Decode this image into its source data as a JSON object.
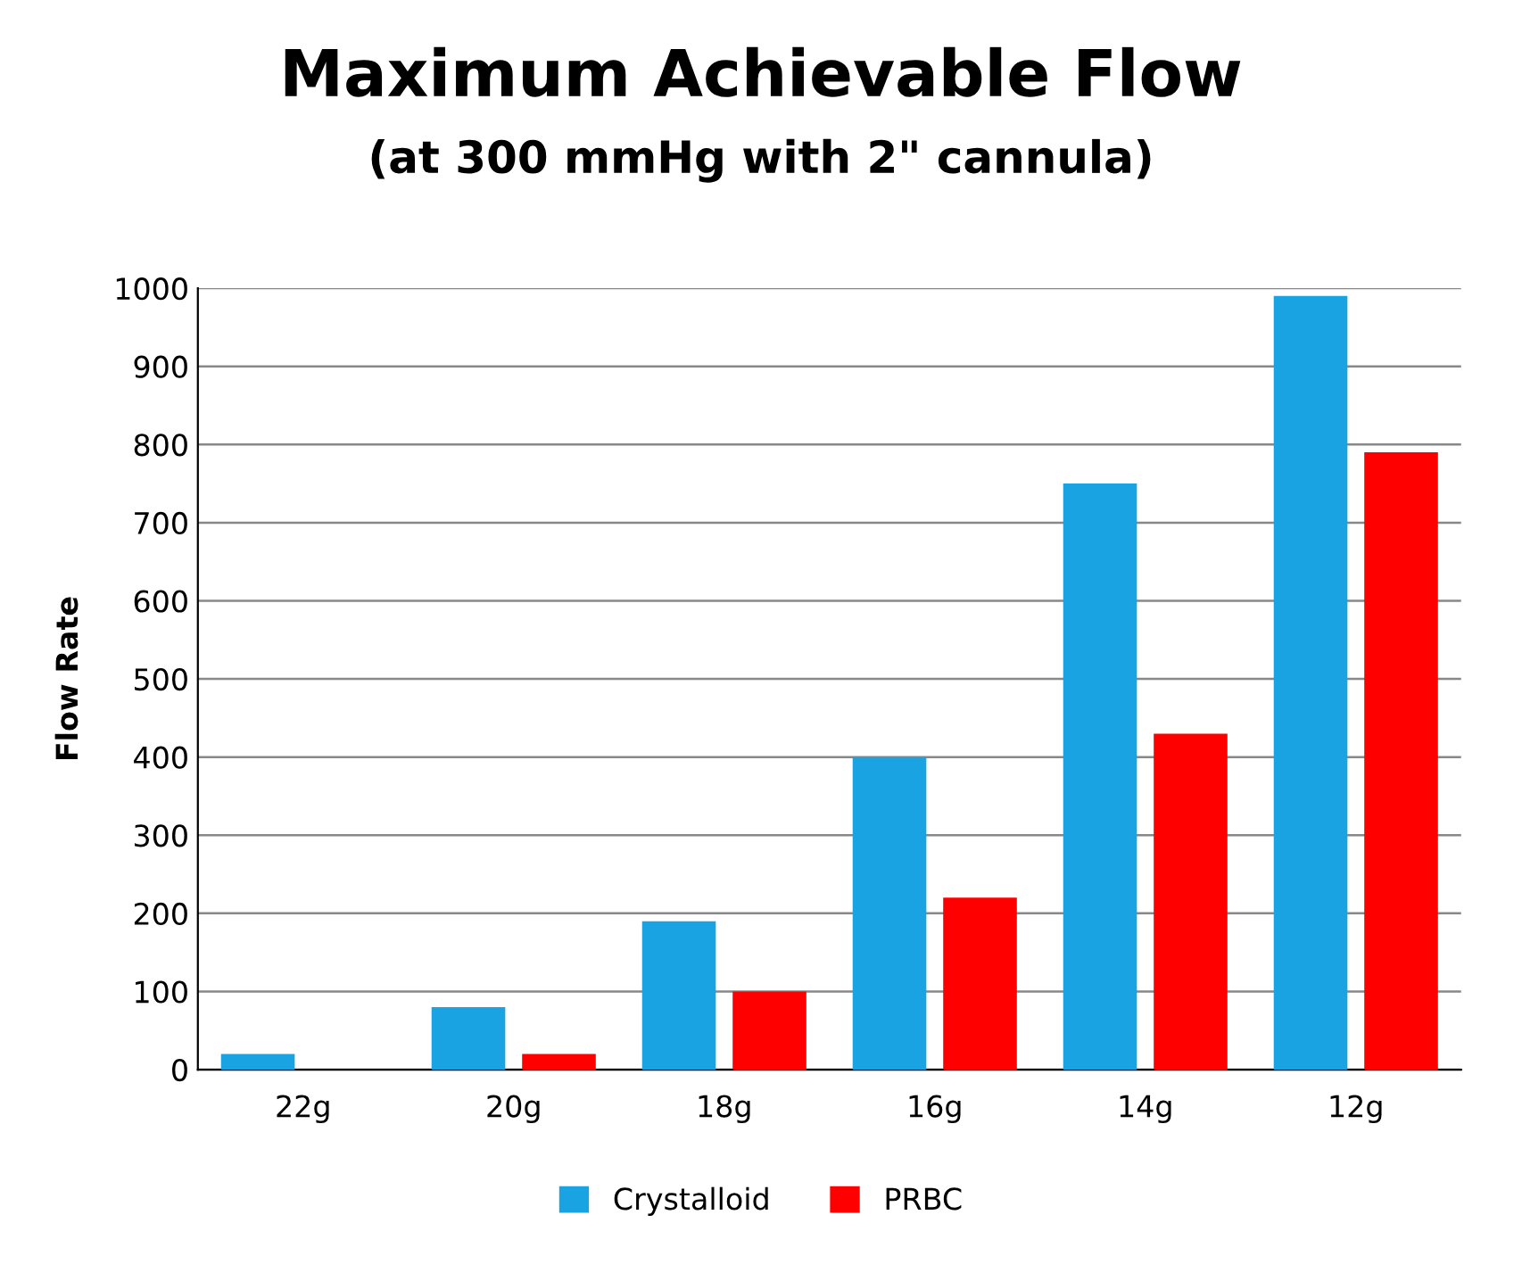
{
  "chart_data": {
    "type": "bar",
    "title": "Maximum Achievable Flow",
    "subtitle": "(at 300 mmHg with 2\" cannula)",
    "ylabel": "Flow Rate",
    "categories": [
      "22g",
      "20g",
      "18g",
      "16g",
      "14g",
      "12g"
    ],
    "series": [
      {
        "name": "Crystalloid",
        "color": "#1aa3e3",
        "values": [
          20,
          80,
          190,
          400,
          750,
          990
        ]
      },
      {
        "name": "PRBC",
        "color": "#fe0000",
        "values": [
          0,
          20,
          100,
          220,
          430,
          790
        ]
      }
    ],
    "ylim": [
      0,
      1000
    ],
    "yticks": [
      0,
      100,
      200,
      300,
      400,
      500,
      600,
      700,
      800,
      900,
      1000
    ],
    "grid": "y",
    "legend": "bottom"
  }
}
